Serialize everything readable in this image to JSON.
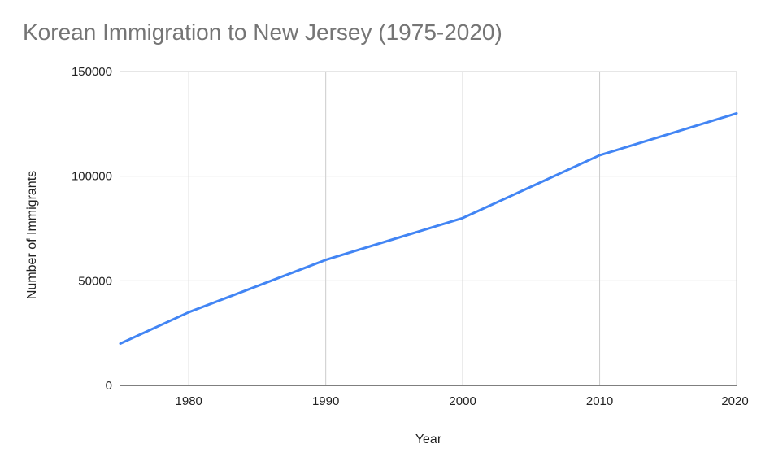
{
  "chart_data": {
    "type": "line",
    "title": "Korean Immigration to New Jersey (1975-2020)",
    "xlabel": "Year",
    "ylabel": "Number of Immigrants",
    "x": [
      1975,
      1980,
      1990,
      2000,
      2010,
      2020
    ],
    "series": [
      {
        "values": [
          20000,
          35000,
          60000,
          80000,
          110000,
          130000
        ]
      }
    ],
    "xlim": [
      1975,
      2020
    ],
    "ylim": [
      0,
      150000
    ],
    "x_ticks": [
      "1980",
      "1990",
      "2000",
      "2010",
      "2020"
    ],
    "x_tick_values": [
      1980,
      1990,
      2000,
      2010,
      2020
    ],
    "y_ticks": [
      "0",
      "50000",
      "100000",
      "150000"
    ],
    "y_tick_values": [
      0,
      50000,
      100000,
      150000
    ],
    "grid": true,
    "legend": "none",
    "colors": {
      "line": "#4285f4",
      "grid": "#cccccc",
      "baseline": "#333333"
    }
  }
}
